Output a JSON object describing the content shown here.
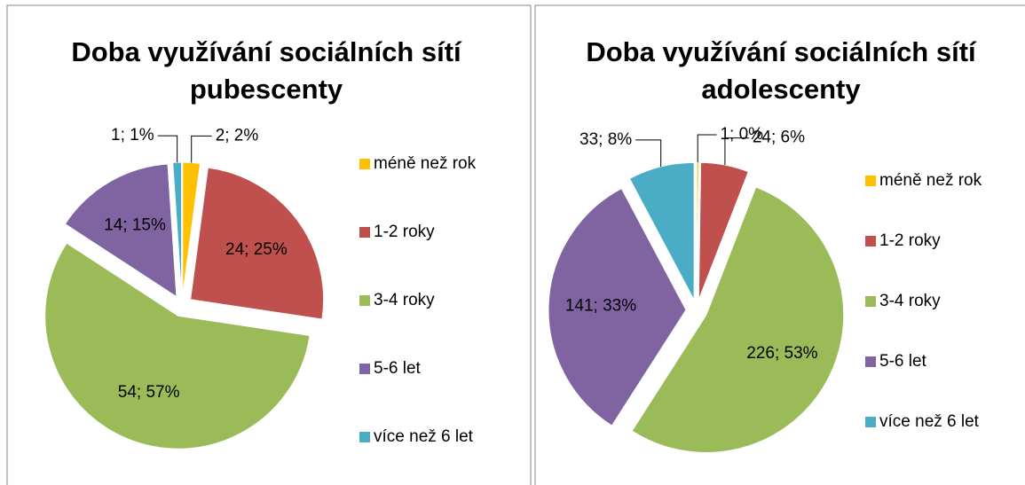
{
  "chart_data": [
    {
      "type": "pie",
      "title": "Doba využívání sociálních sítí pubescenty",
      "categories": [
        "méně než rok",
        "1-2 roky",
        "3-4 roky",
        "5-6 let",
        "více než 6 let"
      ],
      "values": [
        2,
        24,
        54,
        14,
        1
      ],
      "value_labels": [
        "2; 2%",
        "24; 25%",
        "54; 57%",
        "14; 15%",
        "1; 1%"
      ],
      "colors": [
        "#ffc000",
        "#c0504d",
        "#9bbb59",
        "#8064a2",
        "#4bacc6"
      ],
      "legend": "right"
    },
    {
      "type": "pie",
      "title": "Doba využívání sociálních sítí adolescenty",
      "categories": [
        "méně než rok",
        "1-2 roky",
        "3-4 roky",
        "5-6 let",
        "více než 6 let"
      ],
      "values": [
        1,
        24,
        226,
        141,
        33
      ],
      "value_labels": [
        "1; 0%",
        "24; 6%",
        "226; 53%",
        "141; 33%",
        "33; 8%"
      ],
      "colors": [
        "#ffc000",
        "#c0504d",
        "#9bbb59",
        "#8064a2",
        "#4bacc6"
      ],
      "legend": "right"
    }
  ]
}
